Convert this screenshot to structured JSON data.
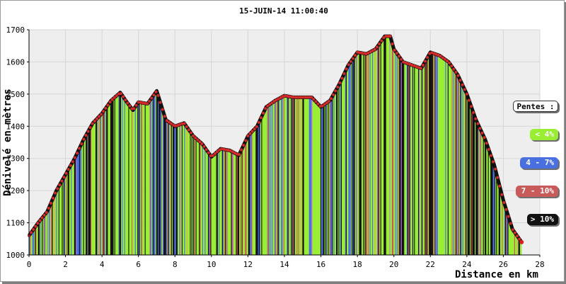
{
  "chart_data": {
    "type": "area",
    "title": "15-JUIN-14 11:00:40",
    "xlabel": "Distance en km",
    "ylabel": "Dénivelé en mètres",
    "xlim": [
      0,
      28
    ],
    "ylim": [
      1000,
      1700
    ],
    "x_ticks": [
      0,
      2,
      4,
      6,
      8,
      10,
      12,
      14,
      16,
      18,
      20,
      22,
      24,
      26,
      28
    ],
    "y_ticks": [
      1000,
      1100,
      1200,
      1300,
      1400,
      1500,
      1600,
      1700
    ],
    "grid": true,
    "legend_title": "Pentes :",
    "legend": [
      {
        "label": "< 4%",
        "color": "#99ee33",
        "text_color": "#ffffff"
      },
      {
        "label": "4 - 7%",
        "color": "#4a6fe0",
        "text_color": "#ffffff"
      },
      {
        "label": "7 - 10%",
        "color": "#c85a5a",
        "text_color": "#ffffff"
      },
      {
        "label": "> 10%",
        "color": "#111111",
        "text_color": "#ffffff"
      }
    ],
    "profile": {
      "x": [
        0,
        0.5,
        1,
        1.5,
        2,
        2.5,
        3,
        3.5,
        4,
        4.5,
        5,
        5.3,
        5.7,
        6,
        6.5,
        7,
        7.5,
        8,
        8.5,
        9,
        9.5,
        10,
        10.5,
        11,
        11.5,
        12,
        12.5,
        13,
        13.5,
        14,
        14.5,
        15,
        15.5,
        16,
        16.5,
        17,
        17.5,
        18,
        18.5,
        19,
        19.5,
        19.8,
        20,
        20.5,
        21,
        21.5,
        22,
        22.5,
        23,
        23.5,
        24,
        24.5,
        25,
        25.5,
        26,
        26.5,
        27
      ],
      "y": [
        1060,
        1100,
        1135,
        1200,
        1250,
        1300,
        1360,
        1410,
        1440,
        1480,
        1505,
        1480,
        1450,
        1475,
        1470,
        1510,
        1420,
        1400,
        1410,
        1370,
        1345,
        1305,
        1330,
        1325,
        1310,
        1370,
        1400,
        1460,
        1480,
        1495,
        1490,
        1490,
        1490,
        1460,
        1480,
        1530,
        1590,
        1630,
        1625,
        1640,
        1680,
        1680,
        1640,
        1600,
        1590,
        1580,
        1630,
        1620,
        1600,
        1560,
        1500,
        1420,
        1360,
        1280,
        1170,
        1080,
        1040
      ]
    }
  }
}
